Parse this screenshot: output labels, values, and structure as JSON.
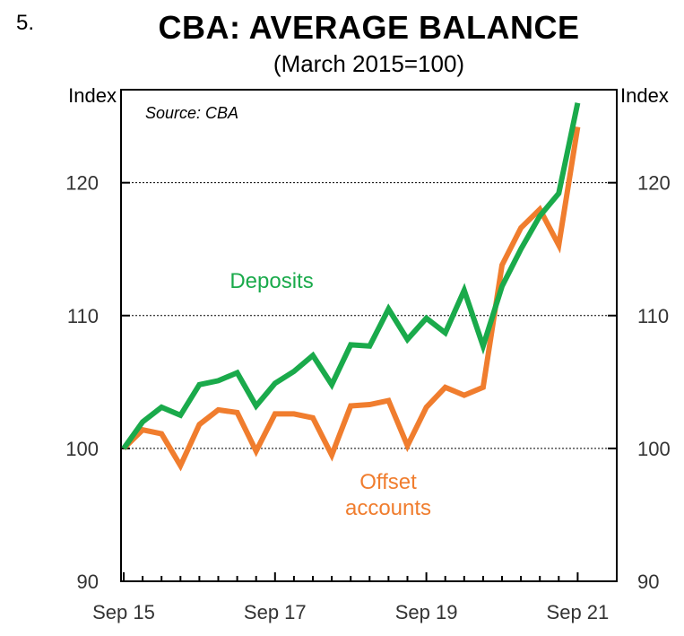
{
  "figure_number": "5.",
  "chart_data": {
    "type": "line",
    "title": "CBA: AVERAGE BALANCE",
    "subtitle": "(March 2015=100)",
    "source": "Source: CBA",
    "y_unit_left": "Index",
    "y_unit_right": "Index",
    "ylim": [
      90,
      127
    ],
    "yticks": [
      90,
      100,
      110,
      120
    ],
    "gridlines_at": [
      100,
      110,
      120
    ],
    "x_tick_labels": [
      {
        "label": "Sep 15",
        "index": 0
      },
      {
        "label": "Sep 17",
        "index": 8
      },
      {
        "label": "Sep 19",
        "index": 16
      },
      {
        "label": "Sep 21",
        "index": 24
      }
    ],
    "x_count": 25,
    "series": [
      {
        "name": "Deposits",
        "label_lines": [
          "Deposits"
        ],
        "color": "#1aaa4b",
        "values": [
          100.0,
          102.0,
          103.1,
          102.5,
          104.8,
          105.1,
          105.7,
          103.2,
          104.9,
          105.8,
          107.0,
          104.8,
          107.8,
          107.7,
          110.5,
          108.2,
          109.8,
          108.7,
          111.9,
          107.7,
          112.2,
          115.0,
          117.5,
          119.2,
          126.0
        ]
      },
      {
        "name": "Offset accounts",
        "label_lines": [
          "Offset",
          "accounts"
        ],
        "color": "#f07d2e",
        "values": [
          100.0,
          101.4,
          101.1,
          98.7,
          101.8,
          102.9,
          102.7,
          99.8,
          102.6,
          102.6,
          102.3,
          99.5,
          103.2,
          103.3,
          103.6,
          100.2,
          103.1,
          104.6,
          104.0,
          104.6,
          113.8,
          116.6,
          118.0,
          115.3,
          124.2
        ]
      }
    ]
  }
}
